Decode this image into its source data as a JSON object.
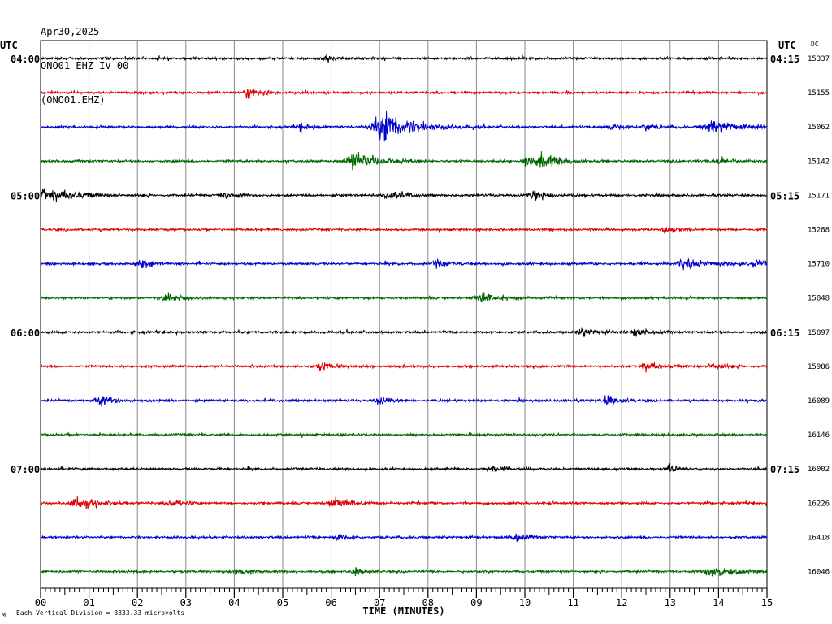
{
  "header": {
    "date": "Apr30,2025",
    "station": "ONO01 EHZ IV 00",
    "channel": "(ONO01.EHZ)"
  },
  "chart_data": {
    "type": "line",
    "xlabel": "TIME (MINUTES)",
    "xlim": [
      0,
      15
    ],
    "x_ticks": [
      "00",
      "01",
      "02",
      "03",
      "04",
      "05",
      "06",
      "07",
      "08",
      "09",
      "10",
      "11",
      "12",
      "13",
      "14",
      "15"
    ],
    "left_axis_label": "UTC",
    "right_axis_label": "UTC",
    "dc_label": "DC",
    "left_hour_labels": [
      {
        "row": 0,
        "text": "04:00"
      },
      {
        "row": 4,
        "text": "05:00"
      },
      {
        "row": 8,
        "text": "06:00"
      },
      {
        "row": 12,
        "text": "07:00"
      }
    ],
    "right_hour_labels": [
      {
        "row": 0,
        "text": "04:15"
      },
      {
        "row": 4,
        "text": "05:15"
      },
      {
        "row": 8,
        "text": "06:15"
      },
      {
        "row": 12,
        "text": "07:15"
      }
    ],
    "trace_colors": [
      "#000000",
      "#dd0000",
      "#0000cc",
      "#006600"
    ],
    "rows": [
      {
        "dc": "15337",
        "events": [
          [
            5.9,
            0.3,
            4
          ]
        ]
      },
      {
        "dc": "15155",
        "events": [
          [
            4.3,
            0.6,
            6
          ]
        ]
      },
      {
        "dc": "15062",
        "events": [
          [
            7.1,
            1.3,
            16
          ],
          [
            5.4,
            0.5,
            4
          ],
          [
            11.7,
            0.6,
            4
          ],
          [
            12.5,
            0.5,
            4
          ],
          [
            13.9,
            1.1,
            8
          ]
        ]
      },
      {
        "dc": "15142",
        "events": [
          [
            6.5,
            1.0,
            10
          ],
          [
            10.4,
            0.8,
            8
          ],
          [
            10.0,
            0.4,
            5
          ],
          [
            14.0,
            0.5,
            4
          ]
        ]
      },
      {
        "dc": "15171",
        "events": [
          [
            0.05,
            1.4,
            9
          ],
          [
            3.8,
            0.5,
            4
          ],
          [
            7.2,
            0.6,
            5
          ],
          [
            10.2,
            0.6,
            6
          ]
        ]
      },
      {
        "dc": "15288",
        "events": [
          [
            12.9,
            0.4,
            4
          ]
        ]
      },
      {
        "dc": "15710",
        "events": [
          [
            2.1,
            0.5,
            5
          ],
          [
            8.2,
            0.5,
            4
          ],
          [
            13.3,
            0.9,
            6
          ],
          [
            14.8,
            0.6,
            4
          ]
        ]
      },
      {
        "dc": "15848",
        "events": [
          [
            2.6,
            0.6,
            4
          ],
          [
            9.1,
            0.7,
            7
          ]
        ]
      },
      {
        "dc": "15897",
        "events": [
          [
            11.2,
            0.6,
            5
          ],
          [
            12.3,
            0.5,
            4
          ]
        ]
      },
      {
        "dc": "15986",
        "events": [
          [
            5.8,
            0.5,
            5
          ],
          [
            12.5,
            0.6,
            5
          ],
          [
            13.9,
            0.5,
            5
          ]
        ]
      },
      {
        "dc": "16089",
        "events": [
          [
            1.2,
            0.6,
            6
          ],
          [
            7.0,
            0.5,
            4
          ],
          [
            11.7,
            0.6,
            5
          ]
        ]
      },
      {
        "dc": "16146",
        "events": []
      },
      {
        "dc": "16002",
        "events": [
          [
            9.3,
            0.5,
            4
          ],
          [
            13.0,
            0.4,
            5
          ]
        ]
      },
      {
        "dc": "16226",
        "events": [
          [
            0.8,
            0.8,
            7
          ],
          [
            6.1,
            0.8,
            6
          ],
          [
            2.7,
            0.5,
            4
          ]
        ]
      },
      {
        "dc": "16418",
        "events": [
          [
            6.1,
            0.4,
            4
          ],
          [
            9.8,
            0.5,
            4
          ]
        ]
      },
      {
        "dc": "16046",
        "events": [
          [
            13.9,
            1.0,
            6
          ],
          [
            4.1,
            0.4,
            4
          ],
          [
            6.5,
            0.4,
            4
          ]
        ]
      }
    ],
    "footer_note": "Each Vertical Division = 3333.33 microvolts",
    "footer_mark": "M"
  }
}
